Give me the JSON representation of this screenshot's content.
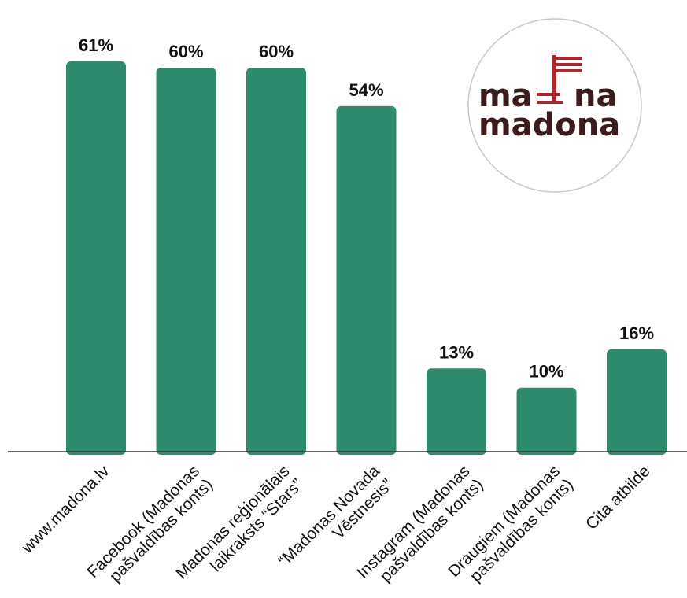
{
  "chart_data": {
    "type": "bar",
    "categories": [
      [
        "www.madona.lv"
      ],
      [
        "Facebook (Madonas",
        "pašvaldības konts)"
      ],
      [
        "Madonas reģionālais",
        "laikraksts “Stars”"
      ],
      [
        "“Madonas Novada",
        "Vēstnesis”"
      ],
      [
        "Instagram (Madonas",
        "pašvaldības konts)"
      ],
      [
        "Draugiem (Madonas",
        "pašvaldības konts)"
      ],
      [
        "Cita atbilde"
      ]
    ],
    "values": [
      61,
      60,
      60,
      54,
      13,
      10,
      16
    ],
    "value_labels": [
      "61%",
      "60%",
      "60%",
      "54%",
      "13%",
      "10%",
      "16%"
    ],
    "unit": "%",
    "ylim": [
      0,
      61
    ],
    "grid": false,
    "bar_color": "#2e8b6e",
    "title": "",
    "xlabel": "",
    "ylabel": ""
  },
  "logo": {
    "line1_left": "ma",
    "line1_right": "na",
    "line2": "madona",
    "text_color": "#3b1b1b",
    "flag_color": "#a8282c",
    "icon": "madona-flag-mark"
  }
}
